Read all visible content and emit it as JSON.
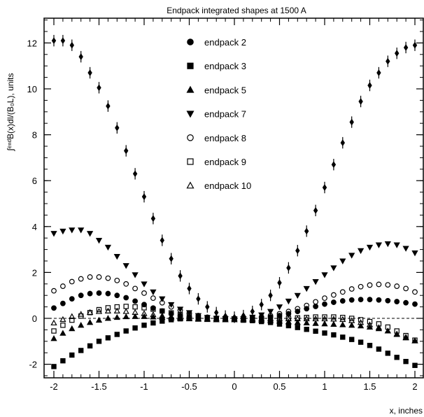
{
  "chart_data": {
    "type": "scatter",
    "title": "Endpack integrated shapes at 1500 A",
    "xlabel": "x, inches",
    "ylabel": "∫ᵉⁿᵈB(x)dl/(B₀L), units",
    "xlim": [
      -2.1,
      2.1
    ],
    "ylim": [
      -3,
      13
    ],
    "x_ticks": [
      -2,
      -1.5,
      -1,
      -0.5,
      0,
      0.5,
      1,
      1.5,
      2
    ],
    "x_tick_labels": [
      "-2",
      "-1.5",
      "-1",
      "-0.5",
      "0",
      "0.5",
      "1",
      "1.5",
      "2"
    ],
    "y_ticks": [
      -2,
      0,
      2,
      4,
      6,
      8,
      10,
      12
    ],
    "y_tick_labels": [
      "-2",
      "0",
      "2",
      "4",
      "6",
      "8",
      "10",
      "12"
    ],
    "reference_line": {
      "y": 0,
      "style": "dashed"
    },
    "legend_position": "top-center",
    "x": [
      -2.0,
      -1.9,
      -1.8,
      -1.7,
      -1.6,
      -1.5,
      -1.4,
      -1.3,
      -1.2,
      -1.1,
      -1.0,
      -0.9,
      -0.8,
      -0.7,
      -0.6,
      -0.5,
      -0.4,
      -0.3,
      -0.2,
      -0.1,
      0.0,
      0.1,
      0.2,
      0.3,
      0.4,
      0.5,
      0.6,
      0.7,
      0.8,
      0.9,
      1.0,
      1.1,
      1.2,
      1.3,
      1.4,
      1.5,
      1.6,
      1.7,
      1.8,
      1.9,
      2.0
    ],
    "series": [
      {
        "name": "endpack 2",
        "marker": "filled-circle",
        "values": [
          0.45,
          0.65,
          0.85,
          1.0,
          1.08,
          1.1,
          1.08,
          1.0,
          0.9,
          0.75,
          0.6,
          0.45,
          0.32,
          0.2,
          0.12,
          0.06,
          0.03,
          0.01,
          0.0,
          -0.01,
          -0.02,
          -0.01,
          0.0,
          0.02,
          0.06,
          0.12,
          0.2,
          0.3,
          0.42,
          0.52,
          0.62,
          0.7,
          0.76,
          0.8,
          0.82,
          0.82,
          0.8,
          0.77,
          0.73,
          0.68,
          0.62
        ]
      },
      {
        "name": "endpack 3",
        "marker": "filled-square",
        "values": [
          -2.1,
          -1.85,
          -1.6,
          -1.4,
          -1.2,
          -1.0,
          -0.85,
          -0.7,
          -0.55,
          -0.42,
          -0.3,
          -0.2,
          -0.12,
          -0.06,
          -0.02,
          0.0,
          0.0,
          0.0,
          -0.01,
          -0.02,
          -0.05,
          -0.08,
          -0.1,
          -0.14,
          -0.18,
          -0.25,
          -0.32,
          -0.4,
          -0.48,
          -0.56,
          -0.64,
          -0.72,
          -0.82,
          -0.92,
          -1.04,
          -1.18,
          -1.34,
          -1.52,
          -1.7,
          -1.88,
          -2.05
        ]
      },
      {
        "name": "endpack 5",
        "marker": "filled-triangle-up",
        "values": [
          -0.88,
          -0.65,
          -0.45,
          -0.3,
          -0.18,
          -0.08,
          0.0,
          0.04,
          0.07,
          0.08,
          0.08,
          0.06,
          0.04,
          0.02,
          0.0,
          -0.02,
          -0.04,
          -0.05,
          -0.06,
          -0.06,
          -0.06,
          -0.06,
          -0.06,
          -0.08,
          -0.1,
          -0.12,
          -0.15,
          -0.18,
          -0.2,
          -0.22,
          -0.24,
          -0.26,
          -0.28,
          -0.3,
          -0.33,
          -0.38,
          -0.45,
          -0.55,
          -0.68,
          -0.82,
          -0.98
        ]
      },
      {
        "name": "endpack 7",
        "marker": "filled-triangle-down",
        "values": [
          3.7,
          3.8,
          3.85,
          3.85,
          3.7,
          3.4,
          3.1,
          2.7,
          2.3,
          1.9,
          1.5,
          1.15,
          0.85,
          0.6,
          0.4,
          0.25,
          0.12,
          0.04,
          0.0,
          -0.02,
          -0.03,
          -0.01,
          0.05,
          0.15,
          0.3,
          0.5,
          0.75,
          1.0,
          1.3,
          1.6,
          1.9,
          2.2,
          2.5,
          2.75,
          2.95,
          3.1,
          3.2,
          3.25,
          3.2,
          3.05,
          2.85
        ]
      },
      {
        "name": "endpack 8",
        "marker": "open-circle",
        "values": [
          1.2,
          1.4,
          1.6,
          1.72,
          1.8,
          1.8,
          1.75,
          1.65,
          1.5,
          1.3,
          1.1,
          0.88,
          0.68,
          0.5,
          0.35,
          0.22,
          0.12,
          0.05,
          0.01,
          -0.01,
          -0.02,
          -0.01,
          0.02,
          0.06,
          0.12,
          0.2,
          0.3,
          0.42,
          0.56,
          0.72,
          0.88,
          1.02,
          1.15,
          1.28,
          1.38,
          1.45,
          1.48,
          1.46,
          1.4,
          1.3,
          1.15
        ]
      },
      {
        "name": "endpack 9",
        "marker": "open-square",
        "values": [
          -0.55,
          -0.3,
          -0.08,
          0.1,
          0.25,
          0.38,
          0.46,
          0.5,
          0.52,
          0.5,
          0.46,
          0.4,
          0.32,
          0.24,
          0.16,
          0.1,
          0.05,
          0.02,
          0.0,
          -0.01,
          -0.02,
          -0.02,
          -0.02,
          -0.02,
          -0.02,
          -0.02,
          0.0,
          0.02,
          0.04,
          0.06,
          0.06,
          0.06,
          0.04,
          0.0,
          -0.06,
          -0.14,
          -0.24,
          -0.38,
          -0.55,
          -0.75,
          -0.95
        ]
      },
      {
        "name": "endpack 10",
        "marker": "open-triangle-up",
        "values": [
          -0.2,
          -0.05,
          0.08,
          0.18,
          0.26,
          0.3,
          0.32,
          0.32,
          0.3,
          0.26,
          0.21,
          0.16,
          0.11,
          0.07,
          0.04,
          0.02,
          0.0,
          -0.01,
          -0.01,
          -0.02,
          -0.02,
          -0.02,
          -0.02,
          -0.02,
          -0.02,
          -0.02,
          -0.02,
          -0.02,
          -0.02,
          -0.02,
          -0.02,
          -0.03,
          -0.05,
          -0.1,
          -0.18,
          -0.28,
          -0.4,
          -0.55,
          -0.7,
          -0.85,
          -0.98
        ]
      }
    ],
    "envelope": {
      "name": "",
      "marker": "filled-diamond-with-error-bar",
      "x": [
        -2.0,
        -1.9,
        -1.8,
        -1.7,
        -1.6,
        -1.5,
        -1.4,
        -1.3,
        -1.2,
        -1.1,
        -1.0,
        -0.9,
        -0.8,
        -0.7,
        -0.6,
        -0.5,
        -0.4,
        -0.3,
        -0.2,
        -0.1,
        0.0,
        0.1,
        0.2,
        0.3,
        0.4,
        0.5,
        0.6,
        0.7,
        0.8,
        0.9,
        1.0,
        1.1,
        1.2,
        1.3,
        1.4,
        1.5,
        1.6,
        1.7,
        1.8,
        1.9,
        2.0
      ],
      "values": [
        12.1,
        12.1,
        11.9,
        11.4,
        10.7,
        10.05,
        9.25,
        8.3,
        7.3,
        6.3,
        5.3,
        4.35,
        3.4,
        2.6,
        1.85,
        1.3,
        0.85,
        0.5,
        0.25,
        0.1,
        0.05,
        0.12,
        0.3,
        0.6,
        1.0,
        1.55,
        2.2,
        2.95,
        3.8,
        4.7,
        5.7,
        6.7,
        7.65,
        8.55,
        9.45,
        10.15,
        10.7,
        11.2,
        11.55,
        11.8,
        11.9
      ],
      "error": 0.25
    }
  }
}
